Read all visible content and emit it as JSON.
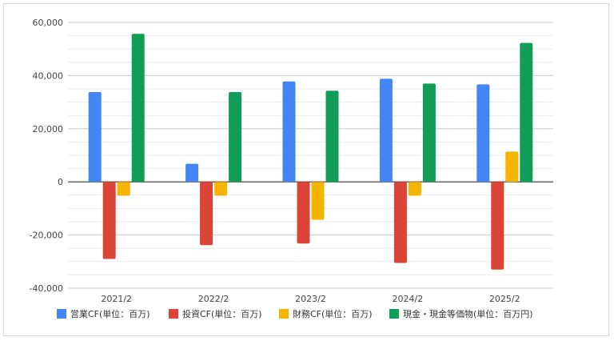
{
  "chart_data": {
    "type": "bar",
    "categories": [
      "2021/2",
      "2022/2",
      "2023/2",
      "2024/2",
      "2025/2"
    ],
    "series": [
      {
        "name": "営業CF(単位：百万)",
        "color": "#4285F4",
        "values": [
          33800,
          6800,
          37800,
          38800,
          36700
        ]
      },
      {
        "name": "投資CF(単位：百万)",
        "color": "#DB4437",
        "values": [
          -29000,
          -23800,
          -23200,
          -30500,
          -33000
        ]
      },
      {
        "name": "財務CF(単位：百万)",
        "color": "#F4B400",
        "values": [
          -5200,
          -5200,
          -14300,
          -5200,
          11400
        ]
      },
      {
        "name": "現金・現金等価物(単位：百万円)",
        "color": "#0F9D58",
        "values": [
          55700,
          33800,
          34300,
          37000,
          52300
        ]
      }
    ],
    "yticks": [
      "60,000",
      "40,000",
      "20,000",
      "0",
      "-20,000",
      "-40,000"
    ],
    "ylim": [
      -40000,
      60000
    ],
    "grid": true,
    "legend_position": "bottom"
  }
}
